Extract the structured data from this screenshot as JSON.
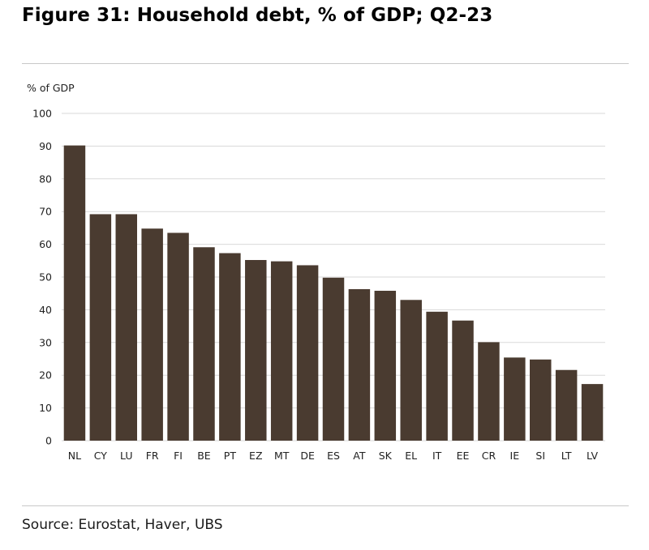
{
  "title": "Figure 31: Household debt, % of GDP; Q2-23",
  "source": "Source: Eurostat, Haver, UBS",
  "chart_data": {
    "type": "bar",
    "ylabel": "% of GDP",
    "ylim": [
      0,
      100
    ],
    "yticks": [
      0,
      10,
      20,
      30,
      40,
      50,
      60,
      70,
      80,
      90,
      100
    ],
    "grid": true,
    "bar_color": "#4a3b30",
    "categories": [
      "NL",
      "CY",
      "LU",
      "FR",
      "FI",
      "BE",
      "PT",
      "EZ",
      "MT",
      "DE",
      "ES",
      "AT",
      "SK",
      "EL",
      "IT",
      "EE",
      "CR",
      "IE",
      "SI",
      "LT",
      "LV"
    ],
    "values": [
      90.2,
      69.2,
      69.2,
      64.8,
      63.5,
      59.1,
      57.3,
      55.2,
      54.8,
      53.6,
      49.8,
      46.3,
      45.8,
      43.0,
      39.4,
      36.7,
      30.1,
      25.4,
      24.8,
      21.6,
      17.3
    ]
  }
}
